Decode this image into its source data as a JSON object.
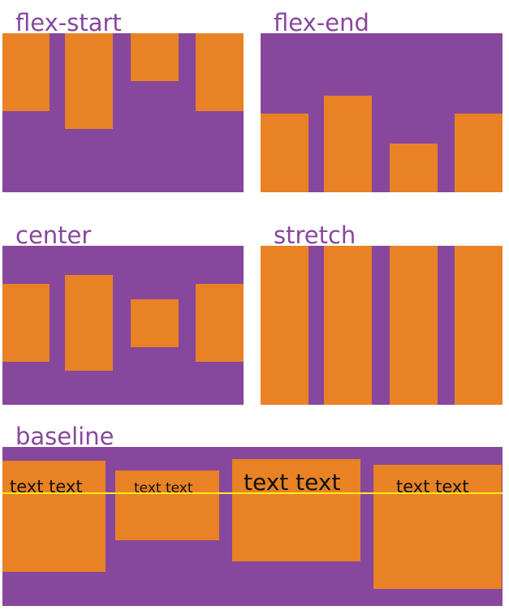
{
  "colors": {
    "purple": "#87479c",
    "orange": "#e88224",
    "text_dark": "#111111",
    "baseline_line": "#ffec1a"
  },
  "panels": {
    "flex_start": {
      "label": "flex-start"
    },
    "flex_end": {
      "label": "flex-end"
    },
    "center": {
      "label": "center"
    },
    "stretch": {
      "label": "stretch"
    },
    "baseline": {
      "label": "baseline",
      "items": [
        "text text",
        "text text",
        "text text",
        "text text"
      ]
    }
  }
}
